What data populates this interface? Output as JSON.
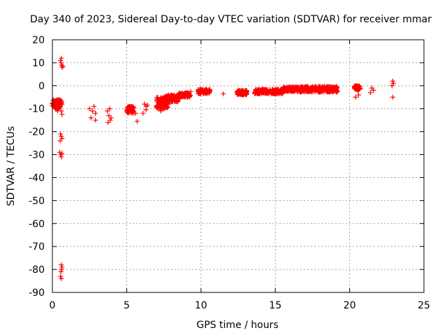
{
  "chart_data": {
    "type": "scatter",
    "title": "Day 340 of 2023, Sidereal Day-to-day VTEC variation (SDTVAR) for receiver mmar",
    "xlabel": "GPS time / hours",
    "ylabel": "SDTVAR / TECUs",
    "xlim": [
      0,
      25
    ],
    "ylim": [
      -90,
      20
    ],
    "xticks": [
      0,
      5,
      10,
      15,
      20,
      25
    ],
    "yticks": [
      20,
      10,
      0,
      -10,
      -20,
      -30,
      -40,
      -50,
      -60,
      -70,
      -80,
      -90
    ],
    "grid": true,
    "marker": "+",
    "color": "#ff0000",
    "series": [
      {
        "name": "SDTVAR",
        "points": [
          [
            0.05,
            -8
          ],
          [
            0.1,
            -7.5
          ],
          [
            0.15,
            -9
          ],
          [
            0.2,
            -8.5
          ],
          [
            0.25,
            -7
          ],
          [
            0.3,
            -10
          ],
          [
            0.35,
            -9
          ],
          [
            0.4,
            -8
          ],
          [
            0.45,
            -9.5
          ],
          [
            0.5,
            -7
          ],
          [
            0.55,
            -8
          ],
          [
            0.6,
            -11
          ],
          [
            0.65,
            -12.5
          ],
          [
            0.5,
            -6.5
          ],
          [
            0.45,
            -10
          ],
          [
            0.35,
            -11
          ],
          [
            0.2,
            -10
          ],
          [
            0.55,
            11
          ],
          [
            0.58,
            10
          ],
          [
            0.62,
            9
          ],
          [
            0.66,
            8
          ],
          [
            0.7,
            8.5
          ],
          [
            0.6,
            12
          ],
          [
            0.55,
            -21
          ],
          [
            0.6,
            -22
          ],
          [
            0.65,
            -23
          ],
          [
            0.52,
            -24
          ],
          [
            0.5,
            -29
          ],
          [
            0.55,
            -30
          ],
          [
            0.6,
            -31
          ],
          [
            0.65,
            -29.5
          ],
          [
            0.6,
            -78
          ],
          [
            0.62,
            -80
          ],
          [
            0.58,
            -81
          ],
          [
            0.55,
            -83
          ],
          [
            0.6,
            -84
          ],
          [
            0.65,
            -79
          ],
          [
            2.5,
            -10
          ],
          [
            2.7,
            -11
          ],
          [
            2.9,
            -12
          ],
          [
            2.8,
            -9
          ],
          [
            2.6,
            -14
          ],
          [
            2.9,
            -15
          ],
          [
            3.7,
            -11
          ],
          [
            3.8,
            -13
          ],
          [
            3.9,
            -15
          ],
          [
            3.85,
            -10
          ],
          [
            3.95,
            -14
          ],
          [
            3.75,
            -16
          ],
          [
            5.0,
            -11
          ],
          [
            5.2,
            -9
          ],
          [
            5.4,
            -10
          ],
          [
            5.6,
            -12
          ],
          [
            5.3,
            -11.5
          ],
          [
            5.1,
            -9.5
          ],
          [
            5.7,
            -15.5
          ],
          [
            6.2,
            -8
          ],
          [
            6.3,
            -9
          ],
          [
            6.4,
            -8.5
          ],
          [
            6.1,
            -12
          ],
          [
            6.3,
            -10.5
          ],
          [
            7.0,
            -9
          ],
          [
            7.2,
            -8
          ],
          [
            7.3,
            -11
          ],
          [
            7.4,
            -7
          ],
          [
            7.5,
            -10
          ],
          [
            7.6,
            -6
          ],
          [
            7.7,
            -5
          ],
          [
            7.8,
            -8
          ],
          [
            8.0,
            -5
          ],
          [
            8.3,
            -6
          ],
          [
            8.5,
            -4
          ],
          [
            8.7,
            -5
          ],
          [
            8.9,
            -3.5
          ],
          [
            9.1,
            -3
          ],
          [
            9.3,
            -2.5
          ],
          [
            10.0,
            -2
          ],
          [
            10.2,
            -3
          ],
          [
            10.4,
            -2
          ],
          [
            10.6,
            -2.5
          ],
          [
            11.5,
            -3.5
          ],
          [
            12.5,
            -3
          ],
          [
            12.7,
            -2
          ],
          [
            12.9,
            -3.5
          ],
          [
            13.0,
            -2.5
          ],
          [
            13.7,
            -3
          ],
          [
            14.0,
            -2
          ],
          [
            14.3,
            -2.5
          ],
          [
            14.6,
            -3
          ],
          [
            15.0,
            -2
          ],
          [
            15.4,
            -2.5
          ],
          [
            15.8,
            -1.5
          ],
          [
            16.2,
            -1
          ],
          [
            16.6,
            -1.5
          ],
          [
            17.0,
            -1
          ],
          [
            17.4,
            -1.5
          ],
          [
            17.8,
            -2
          ],
          [
            18.2,
            -1
          ],
          [
            18.6,
            -1.5
          ],
          [
            19.0,
            -1
          ],
          [
            20.5,
            -1
          ],
          [
            20.6,
            -4
          ],
          [
            20.4,
            -5
          ],
          [
            21.5,
            -1
          ],
          [
            21.6,
            -2
          ],
          [
            21.4,
            -3
          ],
          [
            22.9,
            2
          ],
          [
            22.95,
            1
          ],
          [
            22.85,
            0
          ],
          [
            22.9,
            -5
          ]
        ],
        "bands": [
          {
            "x": [
              0.0,
              0.65
            ],
            "y": [
              -10,
              -6
            ]
          },
          {
            "x": [
              5.0,
              5.5
            ],
            "y": [
              -12,
              -9
            ]
          },
          {
            "x": [
              7.0,
              7.8
            ],
            "y": [
              -10,
              -5
            ]
          },
          {
            "x": [
              7.5,
              8.5
            ],
            "y": [
              -7,
              -4
            ]
          },
          {
            "x": [
              8.5,
              9.3
            ],
            "y": [
              -5,
              -3
            ]
          },
          {
            "x": [
              9.8,
              10.6
            ],
            "y": [
              -3.5,
              -1.5
            ]
          },
          {
            "x": [
              12.4,
              13.1
            ],
            "y": [
              -4,
              -2
            ]
          },
          {
            "x": [
              13.6,
              15.5
            ],
            "y": [
              -3.5,
              -1.5
            ]
          },
          {
            "x": [
              15.5,
              16.5
            ],
            "y": [
              -2.5,
              -0.5
            ]
          },
          {
            "x": [
              16.5,
              19.2
            ],
            "y": [
              -2.8,
              -0.3
            ]
          },
          {
            "x": [
              20.3,
              20.7
            ],
            "y": [
              -2,
              0
            ]
          }
        ]
      }
    ]
  }
}
